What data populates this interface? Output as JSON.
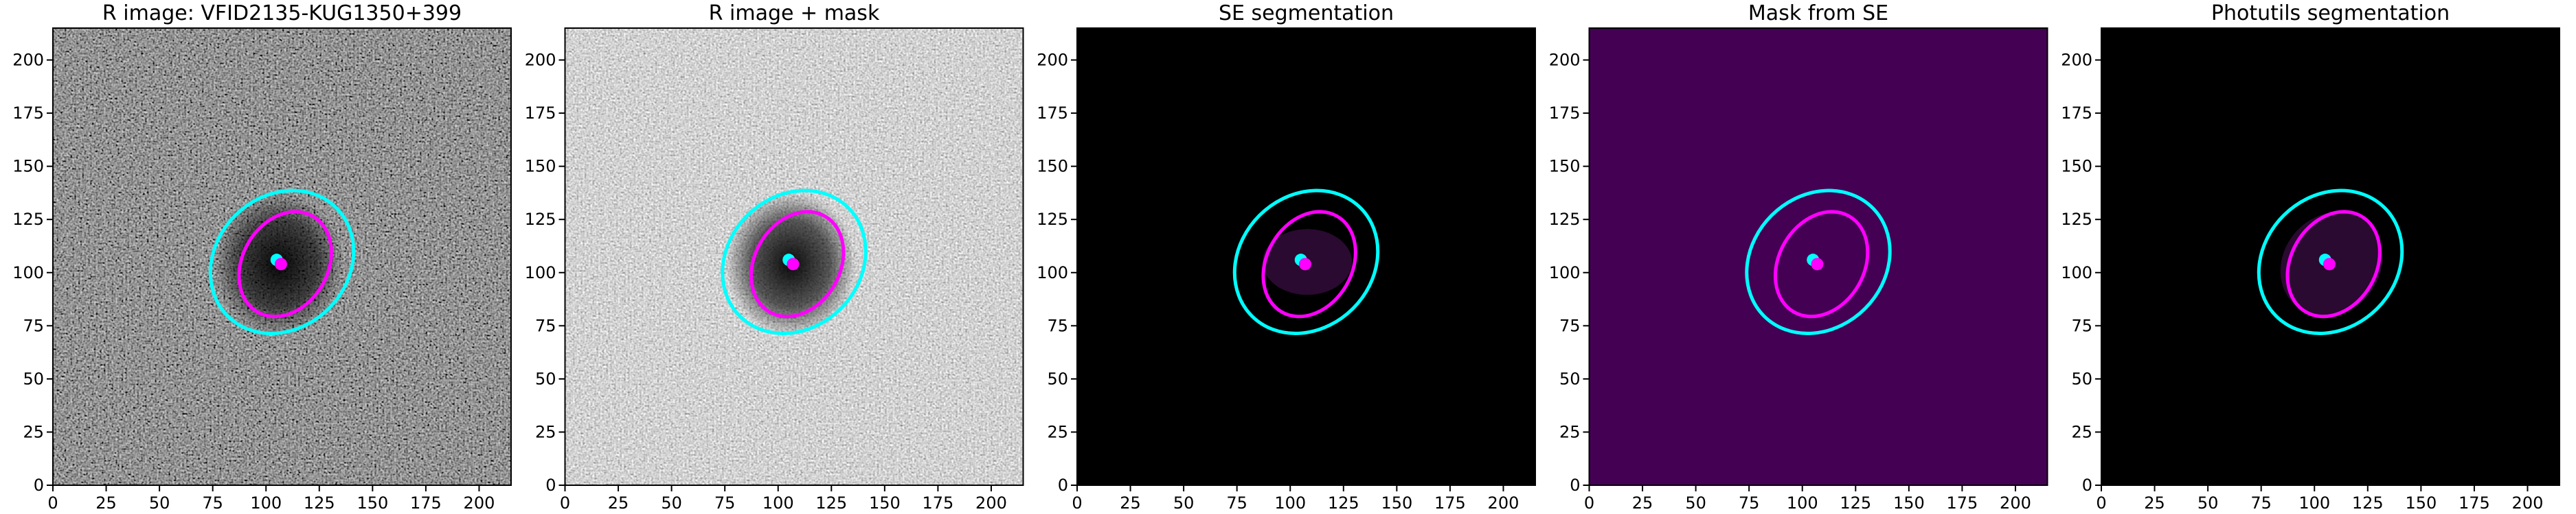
{
  "chart_data": [
    {
      "type": "image",
      "title": "R image: VFID2135-KUG1350+399",
      "background": "noise-dark",
      "xlim": [
        0,
        215
      ],
      "ylim": [
        0,
        215
      ],
      "xticks": [
        0,
        25,
        50,
        75,
        100,
        125,
        150,
        175,
        200
      ],
      "yticks": [
        0,
        25,
        50,
        75,
        100,
        125,
        150,
        175,
        200
      ],
      "ellipses": [
        {
          "color": "#00ffff",
          "x": 107.5,
          "y": 105,
          "width": 72,
          "height": 62,
          "angle": 45
        },
        {
          "color": "#ff00ff",
          "x": 109,
          "y": 104,
          "width": 52,
          "height": 40,
          "angle": 60
        }
      ],
      "points": [
        {
          "color": "#00ffff",
          "x": 105,
          "y": 106
        },
        {
          "color": "#ff00ff",
          "x": 107,
          "y": 104
        }
      ]
    },
    {
      "type": "image",
      "title": "R image + mask",
      "background": "noise-light",
      "xlim": [
        0,
        215
      ],
      "ylim": [
        0,
        215
      ],
      "xticks": [
        0,
        25,
        50,
        75,
        100,
        125,
        150,
        175,
        200
      ],
      "yticks": [
        0,
        25,
        50,
        75,
        100,
        125,
        150,
        175,
        200
      ],
      "ellipses": [
        {
          "color": "#00ffff",
          "x": 107.5,
          "y": 105,
          "width": 72,
          "height": 62,
          "angle": 45
        },
        {
          "color": "#ff00ff",
          "x": 109,
          "y": 104,
          "width": 52,
          "height": 40,
          "angle": 60
        }
      ],
      "points": [
        {
          "color": "#00ffff",
          "x": 105,
          "y": 106
        },
        {
          "color": "#ff00ff",
          "x": 107,
          "y": 104
        }
      ]
    },
    {
      "type": "image",
      "title": "SE segmentation",
      "background": "segmentation-small",
      "xlim": [
        0,
        215
      ],
      "ylim": [
        0,
        215
      ],
      "xticks": [
        0,
        25,
        50,
        75,
        100,
        125,
        150,
        175,
        200
      ],
      "yticks": [
        0,
        25,
        50,
        75,
        100,
        125,
        150,
        175,
        200
      ],
      "ellipses": [
        {
          "color": "#00ffff",
          "x": 107.5,
          "y": 105,
          "width": 72,
          "height": 62,
          "angle": 45
        },
        {
          "color": "#ff00ff",
          "x": 109,
          "y": 104,
          "width": 52,
          "height": 40,
          "angle": 60
        }
      ],
      "points": [
        {
          "color": "#00ffff",
          "x": 105,
          "y": 106
        },
        {
          "color": "#ff00ff",
          "x": 107,
          "y": 104
        }
      ]
    },
    {
      "type": "image",
      "title": "Mask from SE",
      "background": "mask",
      "xlim": [
        0,
        215
      ],
      "ylim": [
        0,
        215
      ],
      "xticks": [
        0,
        25,
        50,
        75,
        100,
        125,
        150,
        175,
        200
      ],
      "yticks": [
        0,
        25,
        50,
        75,
        100,
        125,
        150,
        175,
        200
      ],
      "ellipses": [
        {
          "color": "#00ffff",
          "x": 107.5,
          "y": 105,
          "width": 72,
          "height": 62,
          "angle": 45
        },
        {
          "color": "#ff00ff",
          "x": 109,
          "y": 104,
          "width": 52,
          "height": 40,
          "angle": 60
        }
      ],
      "points": [
        {
          "color": "#00ffff",
          "x": 105,
          "y": 106
        },
        {
          "color": "#ff00ff",
          "x": 107,
          "y": 104
        }
      ]
    },
    {
      "type": "image",
      "title": "Photutils segmentation",
      "background": "segmentation-large",
      "xlim": [
        0,
        215
      ],
      "ylim": [
        0,
        215
      ],
      "xticks": [
        0,
        25,
        50,
        75,
        100,
        125,
        150,
        175,
        200
      ],
      "yticks": [
        0,
        25,
        50,
        75,
        100,
        125,
        150,
        175,
        200
      ],
      "ellipses": [
        {
          "color": "#00ffff",
          "x": 107.5,
          "y": 105,
          "width": 72,
          "height": 62,
          "angle": 45
        },
        {
          "color": "#ff00ff",
          "x": 109,
          "y": 104,
          "width": 52,
          "height": 40,
          "angle": 60
        }
      ],
      "points": [
        {
          "color": "#00ffff",
          "x": 105,
          "y": 106
        },
        {
          "color": "#ff00ff",
          "x": 107,
          "y": 104
        }
      ]
    }
  ]
}
